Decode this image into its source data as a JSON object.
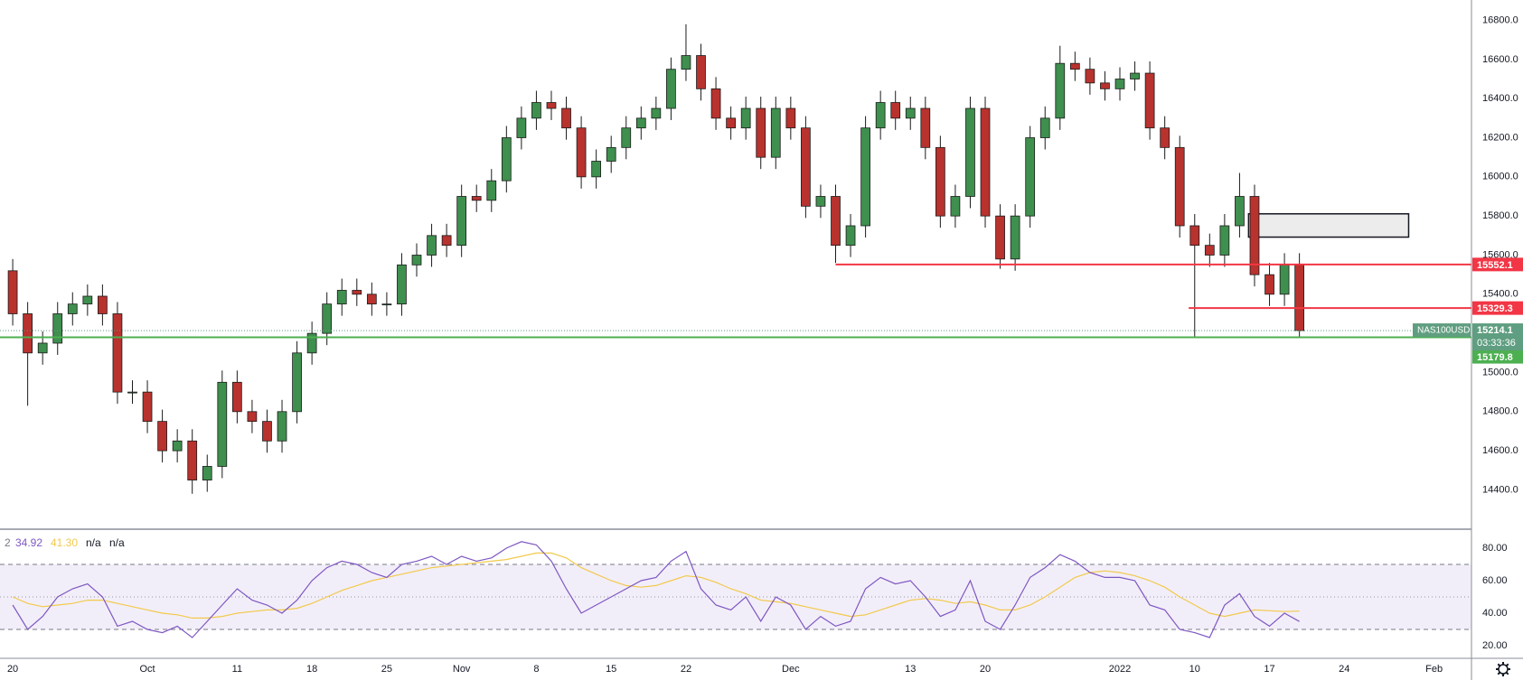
{
  "chart_data": [
    {
      "type": "candlestick",
      "up_color": "#3f8f4f",
      "down_color": "#b8322e",
      "open": [
        15520,
        15300,
        15100,
        15150,
        15300,
        15350,
        15390,
        15300,
        14900,
        14900,
        14750,
        14600,
        14650,
        14450,
        14520,
        14950,
        14800,
        14750,
        14650,
        14800,
        15100,
        15200,
        15350,
        15420,
        15400,
        15350,
        15350,
        15550,
        15600,
        15700,
        15650,
        15900,
        15880,
        15980,
        16200,
        16300,
        16380,
        16350,
        16250,
        16000,
        16080,
        16150,
        16250,
        16300,
        16350,
        16550,
        16620,
        16450,
        16300,
        16250,
        16350,
        16100,
        16350,
        16250,
        15850,
        15900,
        15650,
        15750,
        16250,
        16380,
        16300,
        16350,
        16150,
        15800,
        15900,
        16350,
        15800,
        15580,
        15800,
        16200,
        16300,
        16580,
        16550,
        16480,
        16450,
        16500,
        16530,
        16250,
        16150,
        15750,
        15650,
        15600,
        15750,
        15900,
        15500,
        15400,
        15550
      ],
      "high": [
        15580,
        15360,
        15210,
        15360,
        15410,
        15450,
        15450,
        15360,
        14960,
        14960,
        14810,
        14710,
        14710,
        14580,
        15010,
        15010,
        14860,
        14810,
        14860,
        15160,
        15260,
        15410,
        15480,
        15480,
        15460,
        15410,
        15610,
        15660,
        15760,
        15760,
        15960,
        15960,
        16040,
        16260,
        16360,
        16440,
        16440,
        16410,
        16310,
        16140,
        16210,
        16310,
        16360,
        16410,
        16610,
        16780,
        16680,
        16510,
        16360,
        16410,
        16410,
        16410,
        16410,
        16310,
        15960,
        15960,
        15810,
        16310,
        16440,
        16440,
        16410,
        16410,
        16210,
        15960,
        16410,
        16410,
        15860,
        15860,
        16260,
        16360,
        16670,
        16640,
        16610,
        16540,
        16560,
        16590,
        16590,
        16310,
        16210,
        15810,
        15710,
        15810,
        16020,
        15960,
        15560,
        15610,
        15610
      ],
      "low": [
        15240,
        14830,
        15040,
        15090,
        15240,
        15290,
        15240,
        14840,
        14840,
        14690,
        14540,
        14540,
        14380,
        14390,
        14460,
        14740,
        14690,
        14590,
        14590,
        14740,
        15040,
        15140,
        15290,
        15340,
        15290,
        15290,
        15290,
        15490,
        15540,
        15590,
        15590,
        15820,
        15820,
        15920,
        16140,
        16240,
        16290,
        16190,
        15940,
        15940,
        16020,
        16090,
        16190,
        16240,
        16290,
        16490,
        16390,
        16240,
        16190,
        16190,
        16040,
        16040,
        16190,
        15790,
        15790,
        15560,
        15590,
        15690,
        16190,
        16240,
        16240,
        16090,
        15740,
        15740,
        15840,
        15740,
        15530,
        15520,
        15740,
        16140,
        16240,
        16490,
        16420,
        16390,
        16390,
        16440,
        16190,
        16090,
        15690,
        15180,
        15540,
        15540,
        15690,
        15440,
        15340,
        15340,
        15179.8
      ],
      "close": [
        15300,
        15100,
        15150,
        15300,
        15350,
        15390,
        15300,
        14900,
        14900,
        14750,
        14600,
        14650,
        14450,
        14520,
        14950,
        14800,
        14750,
        14650,
        14800,
        15100,
        15200,
        15350,
        15420,
        15400,
        15350,
        15350,
        15550,
        15600,
        15700,
        15650,
        15900,
        15880,
        15980,
        16200,
        16300,
        16380,
        16350,
        16250,
        16000,
        16080,
        16150,
        16250,
        16300,
        16350,
        16550,
        16620,
        16450,
        16300,
        16250,
        16350,
        16100,
        16350,
        16250,
        15850,
        15900,
        15650,
        15750,
        16250,
        16380,
        16300,
        16350,
        16150,
        15800,
        15900,
        16350,
        15800,
        15580,
        15800,
        16200,
        16300,
        16580,
        16550,
        16480,
        16450,
        16500,
        16530,
        16250,
        16150,
        15750,
        15650,
        15600,
        15750,
        15900,
        15500,
        15400,
        15550,
        15214.1
      ],
      "xlim": [
        -0.85,
        97.5
      ],
      "xticks": [
        {
          "value": 0,
          "label": "20"
        },
        {
          "value": 9,
          "label": "Oct"
        },
        {
          "value": 15,
          "label": "11"
        },
        {
          "value": 20,
          "label": "18"
        },
        {
          "value": 25,
          "label": "25"
        },
        {
          "value": 30,
          "label": "Nov"
        },
        {
          "value": 35,
          "label": "8"
        },
        {
          "value": 40,
          "label": "15"
        },
        {
          "value": 45,
          "label": "22"
        },
        {
          "value": 52,
          "label": "Dec"
        },
        {
          "value": 60,
          "label": "13"
        },
        {
          "value": 65,
          "label": "20"
        },
        {
          "value": 74,
          "label": "2022"
        },
        {
          "value": 79,
          "label": "10"
        },
        {
          "value": 84,
          "label": "17"
        },
        {
          "value": 89,
          "label": "24"
        },
        {
          "value": 95,
          "label": "Feb"
        }
      ],
      "ylim": [
        14199,
        16904
      ],
      "yticks": [
        {
          "value": 14400,
          "label": "14400.0"
        },
        {
          "value": 14600,
          "label": "14600.0"
        },
        {
          "value": 14800,
          "label": "14800.0"
        },
        {
          "value": 15000,
          "label": "15000.0"
        },
        {
          "value": 15200,
          "label": "15200.0"
        },
        {
          "value": 15400,
          "label": "15400.0"
        },
        {
          "value": 15600,
          "label": "15600.0"
        },
        {
          "value": 15800,
          "label": "15800.0"
        },
        {
          "value": 16000,
          "label": "16000.0"
        },
        {
          "value": 16200,
          "label": "16200.0"
        },
        {
          "value": 16400,
          "label": "16400.0"
        },
        {
          "value": 16600,
          "label": "16600.0"
        },
        {
          "value": 16800,
          "label": "16800.0"
        }
      ],
      "grid": true,
      "levels": [
        {
          "value": 15552.1,
          "x_start": 55,
          "color": "#f23645"
        },
        {
          "value": 15329.3,
          "x_start": 78.6,
          "color": "#f23645"
        },
        {
          "value": 15179.8,
          "x_start": -0.85,
          "color": "#4caf50"
        }
      ],
      "last": {
        "symbol": "NAS100USD",
        "value": 15214.1,
        "countdown": "03:33:36",
        "color": "#5f9e80"
      },
      "zone": {
        "x": [
          82.6,
          93.3
        ],
        "y": [
          15692,
          15811
        ]
      }
    },
    {
      "type": "line",
      "legend": [
        "2",
        "34.92",
        "41.30",
        "n/a",
        "n/a"
      ],
      "series": [
        {
          "color": "#7e57c2",
          "values": [
            45,
            30,
            38,
            50,
            55,
            58,
            50,
            32,
            35,
            30,
            28,
            32,
            25,
            35,
            45,
            55,
            48,
            45,
            40,
            48,
            60,
            68,
            72,
            70,
            65,
            62,
            70,
            72,
            75,
            70,
            75,
            72,
            74,
            80,
            84,
            82,
            72,
            55,
            40,
            45,
            50,
            55,
            60,
            62,
            72,
            78,
            55,
            45,
            42,
            50,
            35,
            50,
            45,
            30,
            38,
            32,
            35,
            55,
            62,
            58,
            60,
            50,
            38,
            42,
            60,
            35,
            30,
            45,
            62,
            68,
            76,
            72,
            65,
            62,
            62,
            60,
            45,
            42,
            30,
            28,
            25,
            45,
            52,
            38,
            32,
            40,
            34.92
          ]
        },
        {
          "color": "#f2c94c",
          "values": [
            50,
            46,
            44,
            45,
            46,
            48,
            48,
            46,
            44,
            42,
            40,
            39,
            37,
            37,
            38,
            40,
            41,
            42,
            42,
            43,
            46,
            50,
            54,
            57,
            60,
            62,
            64,
            66,
            68,
            69,
            70,
            71,
            72,
            73,
            75,
            77,
            77,
            74,
            68,
            64,
            60,
            57,
            56,
            57,
            60,
            63,
            62,
            59,
            55,
            52,
            48,
            47,
            46,
            44,
            42,
            40,
            38,
            39,
            42,
            45,
            48,
            49,
            48,
            46,
            47,
            45,
            42,
            42,
            45,
            50,
            56,
            62,
            65,
            66,
            65,
            63,
            60,
            56,
            50,
            45,
            40,
            38,
            40,
            42,
            41.5,
            41,
            41.3
          ]
        }
      ],
      "ylim": [
        12.8,
        91.1
      ],
      "yticks": [
        {
          "value": 20,
          "label": "20.00"
        },
        {
          "value": 40,
          "label": "40.00"
        },
        {
          "value": 60,
          "label": "60.00"
        },
        {
          "value": 80,
          "label": "80.00"
        }
      ],
      "bands": [
        30,
        70
      ],
      "midline": 50
    }
  ]
}
